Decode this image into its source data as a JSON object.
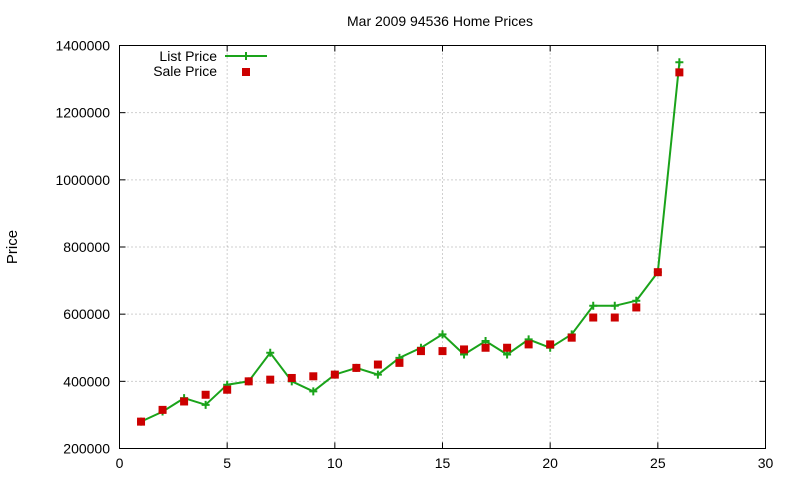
{
  "chart_data": {
    "type": "line",
    "title": "Mar 2009 94536 Home Prices",
    "xlabel": "",
    "ylabel": "Price",
    "xlim": [
      0,
      30
    ],
    "ylim": [
      200000,
      1400000
    ],
    "xticks": [
      "0",
      "5",
      "10",
      "15",
      "20",
      "25",
      "30"
    ],
    "yticks": [
      "200000",
      "400000",
      "600000",
      "800000",
      "1000000",
      "1200000",
      "1400000"
    ],
    "grid": true,
    "legend_position": "top-left",
    "x": [
      1,
      2,
      3,
      4,
      5,
      6,
      7,
      8,
      9,
      10,
      11,
      12,
      13,
      14,
      15,
      16,
      17,
      18,
      19,
      20,
      21,
      22,
      23,
      24,
      25,
      26
    ],
    "series": [
      {
        "name": "List Price",
        "style": "line-with-plus-markers",
        "color": "#1aa31a",
        "values": [
          280000,
          310000,
          350000,
          330000,
          390000,
          400000,
          485000,
          400000,
          370000,
          420000,
          440000,
          420000,
          470000,
          500000,
          540000,
          480000,
          520000,
          480000,
          525000,
          500000,
          540000,
          625000,
          625000,
          640000,
          725000,
          1350000
        ]
      },
      {
        "name": "Sale Price",
        "style": "square-markers",
        "color": "#cc0000",
        "values": [
          280000,
          315000,
          340000,
          360000,
          375000,
          400000,
          405000,
          410000,
          415000,
          420000,
          440000,
          450000,
          455000,
          490000,
          490000,
          495000,
          500000,
          500000,
          510000,
          510000,
          530000,
          590000,
          590000,
          620000,
          725000,
          1320000
        ]
      }
    ]
  }
}
